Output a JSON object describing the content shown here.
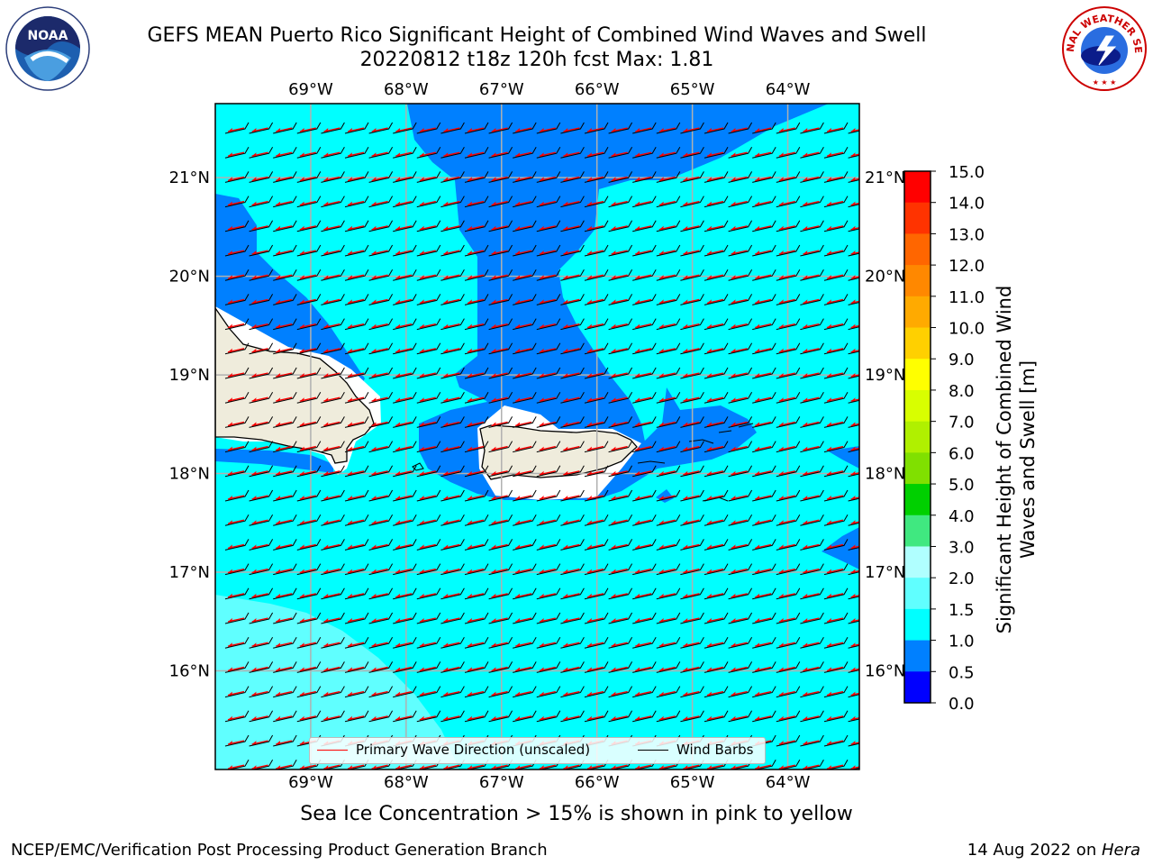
{
  "header": {
    "title_line1": "GEFS MEAN Puerto Rico Significant Height of Combined Wind Waves and Swell",
    "title_line2": "20220812 t18z 120h fcst   Max: 1.81"
  },
  "logos": {
    "left": {
      "name": "noaa-logo",
      "text": "NOAA"
    },
    "right": {
      "name": "nws-logo",
      "text": "NATIONAL WEATHER SERVICE"
    }
  },
  "map": {
    "lon_labels": [
      "69°W",
      "68°W",
      "67°W",
      "66°W",
      "65°W",
      "64°W"
    ],
    "lat_labels": [
      "21°N",
      "20°N",
      "19°N",
      "18°N",
      "17°N",
      "16°N"
    ],
    "lon_range": [
      -70,
      -63.25
    ],
    "lat_range": [
      15,
      21.75
    ],
    "legend": {
      "wave_label": "Primary Wave Direction (unscaled)",
      "barb_label": "Wind Barbs"
    }
  },
  "colorbar": {
    "label": "Significant Height of Combined Wind Waves and Swell [m]",
    "ticks": [
      "15.0",
      "14.0",
      "13.0",
      "12.0",
      "11.0",
      "10.0",
      "9.0",
      "8.0",
      "7.0",
      "6.0",
      "5.0",
      "4.0",
      "3.0",
      "2.0",
      "1.5",
      "1.0",
      "0.5",
      "0.0"
    ],
    "colors": [
      "#ff0000",
      "#ff3300",
      "#ff6600",
      "#ff8800",
      "#ffaa00",
      "#ffd000",
      "#ffff00",
      "#d8ff00",
      "#b0f000",
      "#80e000",
      "#00d000",
      "#40e880",
      "#b0ffff",
      "#60ffff",
      "#00ffff",
      "#0080ff",
      "#0000ff"
    ]
  },
  "colors": {
    "cyan": "#00ffff",
    "medium_blue": "#0080ff",
    "light_cyan": "#60ffff",
    "land": "#efecdc",
    "wave_arrow": "#ff0000"
  },
  "footer": {
    "ice_note": "Sea Ice Concentration > 15% is shown in pink to yellow",
    "credit": "NCEP/EMC/Verification Post Processing Product Generation Branch",
    "date": "14 Aug 2022 on ",
    "host": "Hera"
  }
}
